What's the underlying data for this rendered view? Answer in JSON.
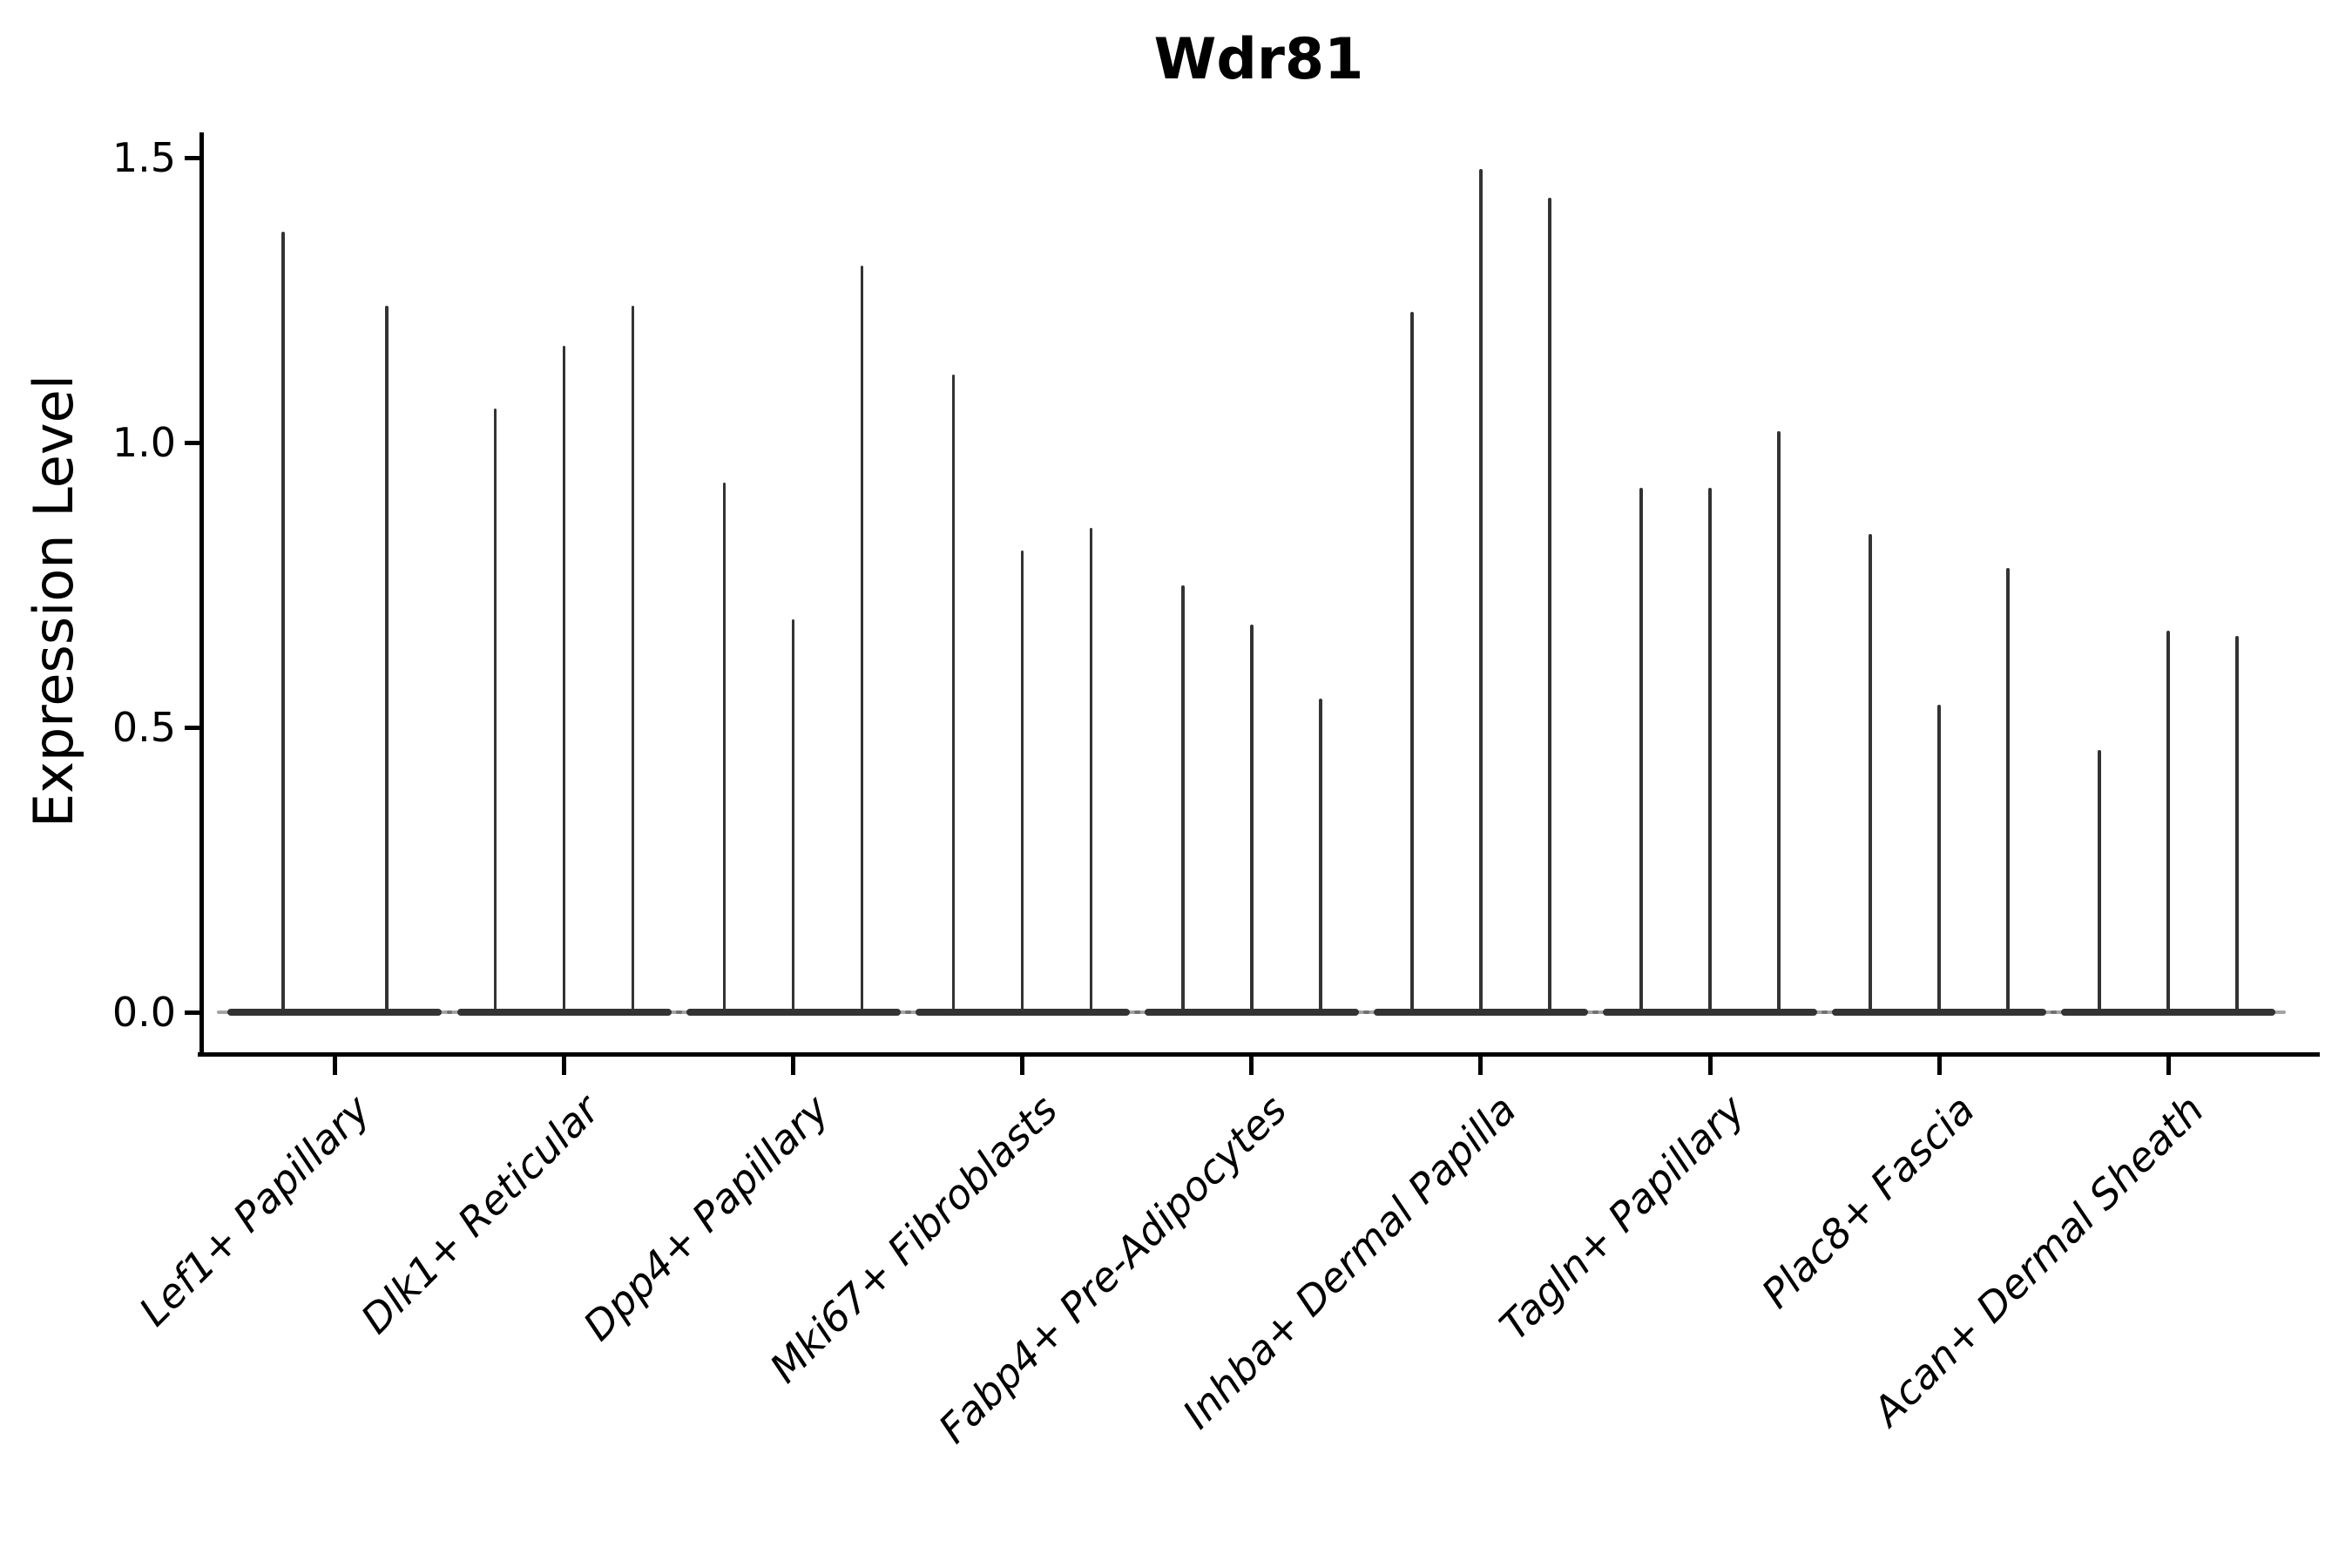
{
  "title": "Wdr81",
  "chart_data": {
    "type": "violin",
    "title": "Wdr81",
    "xlabel": "",
    "ylabel": "Expression Level",
    "ytick_labels": [
      "0.0",
      "0.5",
      "1.0",
      "1.5"
    ],
    "ytick_values": [
      0.0,
      0.5,
      1.0,
      1.5
    ],
    "ylim": [
      -0.07,
      1.6
    ],
    "grid": false,
    "legend": "none",
    "x_tick_rotation_deg": 45,
    "categories": [
      "Lef1+ Papillary",
      "Dlk1+ Reticular",
      "Dpp4+ Papillary",
      "Mki67+ Fibroblasts",
      "Fabp4+ Pre-Adipocytes",
      "Inhba+ Dermal Papilla",
      "Tagln+ Papillary",
      "Plac8+ Fascia",
      "Acan+ Dermal Sheath"
    ],
    "violin_peaks": [
      [
        1.37,
        1.24
      ],
      [
        1.06,
        1.17,
        1.24
      ],
      [
        0.93,
        0.69,
        1.31
      ],
      [
        1.12,
        0.81,
        0.85
      ],
      [
        0.75,
        0.68,
        0.55
      ],
      [
        1.23,
        1.48,
        1.43
      ],
      [
        0.92,
        0.92,
        1.02
      ],
      [
        0.84,
        0.54,
        0.78
      ],
      [
        0.46,
        0.67,
        0.66
      ]
    ],
    "colors": {
      "violin": "#333333",
      "axis": "#000000",
      "text": "#000000",
      "background": "#ffffff"
    }
  }
}
